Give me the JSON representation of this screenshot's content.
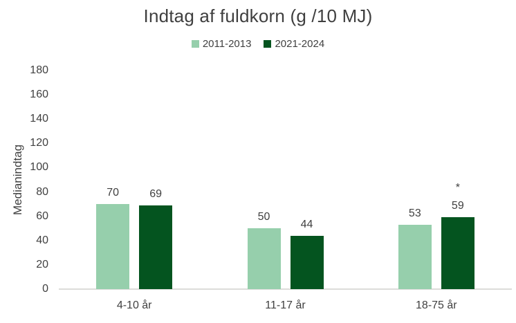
{
  "chart_data": {
    "type": "bar",
    "title": "Indtag af fuldkorn (g /10 MJ)",
    "ylabel": "Medianindtag",
    "xlabel": "",
    "categories": [
      "4-10 år",
      "11-17 år",
      "18-75 år"
    ],
    "series": [
      {
        "name": "2011-2013",
        "color": "#96cfac",
        "values": [
          70,
          50,
          53
        ]
      },
      {
        "name": "2021-2024",
        "color": "#04541f",
        "values": [
          69,
          44,
          59
        ]
      }
    ],
    "annotations": [
      {
        "series_index": 1,
        "category_index": 2,
        "text": "*"
      }
    ],
    "ylim": [
      0,
      180
    ],
    "yticks": [
      0,
      20,
      40,
      60,
      80,
      100,
      120,
      140,
      160,
      180
    ],
    "grid": false,
    "legend_position": "top",
    "colors": {
      "text": "#404040",
      "axis_line": "#dcdcda",
      "background": "#ffffff"
    }
  }
}
